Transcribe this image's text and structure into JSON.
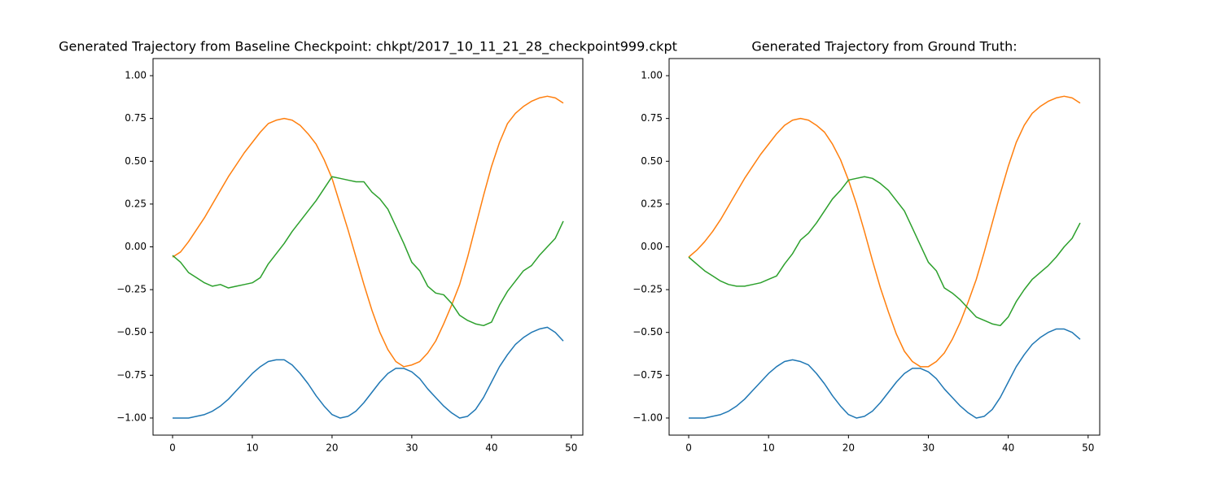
{
  "chart_data": [
    {
      "type": "line",
      "title": "Generated Trajectory from Baseline Checkpoint: chkpt/2017_10_11_21_28_checkpoint999.ckpt",
      "x": [
        0,
        1,
        2,
        3,
        4,
        5,
        6,
        7,
        8,
        9,
        10,
        11,
        12,
        13,
        14,
        15,
        16,
        17,
        18,
        19,
        20,
        21,
        22,
        23,
        24,
        25,
        26,
        27,
        28,
        29,
        30,
        31,
        32,
        33,
        34,
        35,
        36,
        37,
        38,
        39,
        40,
        41,
        42,
        43,
        44,
        45,
        46,
        47,
        48,
        49
      ],
      "series": [
        {
          "color": "#1f77b4",
          "values": [
            -1.0,
            -1.0,
            -1.0,
            -0.99,
            -0.98,
            -0.96,
            -0.93,
            -0.89,
            -0.84,
            -0.79,
            -0.74,
            -0.7,
            -0.67,
            -0.66,
            -0.66,
            -0.69,
            -0.74,
            -0.8,
            -0.87,
            -0.93,
            -0.98,
            -1.0,
            -0.99,
            -0.96,
            -0.91,
            -0.85,
            -0.79,
            -0.74,
            -0.71,
            -0.71,
            -0.73,
            -0.77,
            -0.83,
            -0.88,
            -0.93,
            -0.97,
            -1.0,
            -0.99,
            -0.95,
            -0.88,
            -0.79,
            -0.7,
            -0.63,
            -0.57,
            -0.53,
            -0.5,
            -0.48,
            -0.47,
            -0.5,
            -0.55
          ]
        },
        {
          "color": "#ff7f0e",
          "values": [
            -0.06,
            -0.03,
            0.03,
            0.1,
            0.17,
            0.25,
            0.33,
            0.41,
            0.48,
            0.55,
            0.61,
            0.67,
            0.72,
            0.74,
            0.75,
            0.74,
            0.71,
            0.66,
            0.6,
            0.51,
            0.4,
            0.25,
            0.1,
            -0.06,
            -0.22,
            -0.37,
            -0.5,
            -0.6,
            -0.67,
            -0.7,
            -0.69,
            -0.67,
            -0.62,
            -0.55,
            -0.45,
            -0.34,
            -0.22,
            -0.06,
            0.12,
            0.3,
            0.47,
            0.61,
            0.72,
            0.78,
            0.82,
            0.85,
            0.87,
            0.88,
            0.87,
            0.84
          ]
        },
        {
          "color": "#2ca02c",
          "values": [
            -0.05,
            -0.09,
            -0.15,
            -0.18,
            -0.21,
            -0.23,
            -0.22,
            -0.24,
            -0.23,
            -0.22,
            -0.21,
            -0.18,
            -0.1,
            -0.04,
            0.02,
            0.09,
            0.15,
            0.21,
            0.27,
            0.34,
            0.41,
            0.4,
            0.39,
            0.38,
            0.38,
            0.32,
            0.28,
            0.22,
            0.12,
            0.02,
            -0.09,
            -0.14,
            -0.23,
            -0.27,
            -0.28,
            -0.33,
            -0.4,
            -0.43,
            -0.45,
            -0.46,
            -0.44,
            -0.34,
            -0.26,
            -0.2,
            -0.14,
            -0.11,
            -0.05,
            0.0,
            0.05,
            0.15
          ]
        }
      ],
      "xlim": [
        -2.45,
        51.45
      ],
      "ylim": [
        -1.1,
        1.1
      ],
      "xticks": [
        0,
        10,
        20,
        30,
        40,
        50
      ],
      "yticks": [
        {
          "value": -1,
          "label": "−1.00"
        },
        {
          "value": -0.75,
          "label": "−0.75"
        },
        {
          "value": -0.5,
          "label": "−0.50"
        },
        {
          "value": -0.25,
          "label": "−0.25"
        },
        {
          "value": 0,
          "label": "0.00"
        },
        {
          "value": 0.25,
          "label": "0.25"
        },
        {
          "value": 0.5,
          "label": "0.50"
        },
        {
          "value": 0.75,
          "label": "0.75"
        },
        {
          "value": 1,
          "label": "1.00"
        }
      ],
      "grid": false
    },
    {
      "type": "line",
      "title": "Generated Trajectory from Ground Truth:",
      "x": [
        0,
        1,
        2,
        3,
        4,
        5,
        6,
        7,
        8,
        9,
        10,
        11,
        12,
        13,
        14,
        15,
        16,
        17,
        18,
        19,
        20,
        21,
        22,
        23,
        24,
        25,
        26,
        27,
        28,
        29,
        30,
        31,
        32,
        33,
        34,
        35,
        36,
        37,
        38,
        39,
        40,
        41,
        42,
        43,
        44,
        45,
        46,
        47,
        48,
        49
      ],
      "series": [
        {
          "color": "#1f77b4",
          "values": [
            -1.0,
            -1.0,
            -1.0,
            -0.99,
            -0.98,
            -0.96,
            -0.93,
            -0.89,
            -0.84,
            -0.79,
            -0.74,
            -0.7,
            -0.67,
            -0.66,
            -0.67,
            -0.69,
            -0.74,
            -0.8,
            -0.87,
            -0.93,
            -0.98,
            -1.0,
            -0.99,
            -0.96,
            -0.91,
            -0.85,
            -0.79,
            -0.74,
            -0.71,
            -0.71,
            -0.73,
            -0.77,
            -0.83,
            -0.88,
            -0.93,
            -0.97,
            -1.0,
            -0.99,
            -0.95,
            -0.88,
            -0.79,
            -0.7,
            -0.63,
            -0.57,
            -0.53,
            -0.5,
            -0.48,
            -0.48,
            -0.5,
            -0.54
          ]
        },
        {
          "color": "#ff7f0e",
          "values": [
            -0.06,
            -0.02,
            0.03,
            0.09,
            0.16,
            0.24,
            0.32,
            0.4,
            0.47,
            0.54,
            0.6,
            0.66,
            0.71,
            0.74,
            0.75,
            0.74,
            0.71,
            0.67,
            0.6,
            0.51,
            0.39,
            0.25,
            0.09,
            -0.08,
            -0.24,
            -0.38,
            -0.51,
            -0.61,
            -0.67,
            -0.7,
            -0.7,
            -0.67,
            -0.62,
            -0.54,
            -0.44,
            -0.32,
            -0.19,
            -0.03,
            0.14,
            0.31,
            0.47,
            0.61,
            0.71,
            0.78,
            0.82,
            0.85,
            0.87,
            0.88,
            0.87,
            0.84
          ]
        },
        {
          "color": "#2ca02c",
          "values": [
            -0.06,
            -0.1,
            -0.14,
            -0.17,
            -0.2,
            -0.22,
            -0.23,
            -0.23,
            -0.22,
            -0.21,
            -0.19,
            -0.17,
            -0.1,
            -0.04,
            0.04,
            0.08,
            0.14,
            0.21,
            0.28,
            0.33,
            0.39,
            0.4,
            0.41,
            0.4,
            0.37,
            0.33,
            0.27,
            0.21,
            0.11,
            0.01,
            -0.09,
            -0.14,
            -0.24,
            -0.27,
            -0.31,
            -0.36,
            -0.41,
            -0.43,
            -0.45,
            -0.46,
            -0.41,
            -0.32,
            -0.25,
            -0.19,
            -0.15,
            -0.11,
            -0.06,
            0.0,
            0.05,
            0.14
          ]
        }
      ],
      "xlim": [
        -2.45,
        51.45
      ],
      "ylim": [
        -1.1,
        1.1
      ],
      "xticks": [
        0,
        10,
        20,
        30,
        40,
        50
      ],
      "yticks": [
        {
          "value": -1,
          "label": "−1.00"
        },
        {
          "value": -0.75,
          "label": "−0.75"
        },
        {
          "value": -0.5,
          "label": "−0.50"
        },
        {
          "value": -0.25,
          "label": "−0.25"
        },
        {
          "value": 0,
          "label": "0.00"
        },
        {
          "value": 0.25,
          "label": "0.25"
        },
        {
          "value": 0.5,
          "label": "0.50"
        },
        {
          "value": 0.75,
          "label": "0.75"
        },
        {
          "value": 1,
          "label": "1.00"
        }
      ],
      "grid": false
    }
  ]
}
